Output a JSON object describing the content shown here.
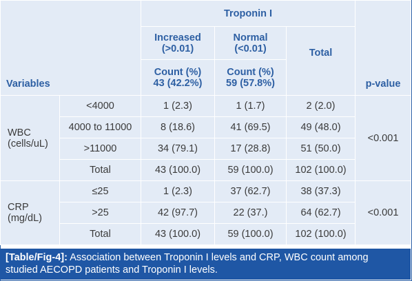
{
  "table": {
    "header": {
      "troponin": "Troponin I",
      "variables": "Variables",
      "increased_l1": "Increased",
      "increased_l2": "(>0.01)",
      "normal_l1": "Normal",
      "normal_l2": "(<0.01)",
      "total": "Total",
      "pvalue": "p-value",
      "count_inc_l1": "Count (%)",
      "count_inc_l2": "43 (42.2%)",
      "count_norm_l1": "Count (%)",
      "count_norm_l2": "59 (57.8%)",
      "count_total": "Count (%)"
    },
    "wbc": {
      "label_l1": "WBC",
      "label_l2": "(cells/uL)",
      "pvalue": "<0.001",
      "rows": [
        {
          "category": "<4000",
          "increased": "1 (2.3)",
          "normal": "1 (1.7)",
          "total": "2 (2.0)"
        },
        {
          "category": "4000 to 11000",
          "increased": "8 (18.6)",
          "normal": "41 (69.5)",
          "total": "49 (48.0)"
        },
        {
          "category": ">11000",
          "increased": "34 (79.1)",
          "normal": "17 (28.8)",
          "total": "51 (50.0)"
        },
        {
          "category": "Total",
          "increased": "43 (100.0)",
          "normal": "59 (100.0)",
          "total": "102 (100.0)"
        }
      ]
    },
    "crp": {
      "label_l1": "CRP",
      "label_l2": "(mg/dL)",
      "pvalue": "<0.001",
      "rows": [
        {
          "category": "≤25",
          "increased": "1 (2.3)",
          "normal": "37 (62.7)",
          "total": "38 (37.3)"
        },
        {
          "category": ">25",
          "increased": "42 (97.7)",
          "normal": "22 (37.)",
          "total": "64 (62.7)"
        },
        {
          "category": "Total",
          "increased": "43 (100.0)",
          "normal": "59 (100.0)",
          "total": "102 (100.0)"
        }
      ]
    }
  },
  "caption": {
    "label": "[Table/Fig-4]:",
    "text_l1": "Association between Troponin I levels and CRP, WBC count among",
    "text_l2": "studied AECOPD patients and Troponin I levels."
  },
  "colors": {
    "cell_bg": "#e3ebf6",
    "header_text": "#2d5fa3",
    "caption_bg": "#1f57a5",
    "frame": "#2b5fa6"
  }
}
